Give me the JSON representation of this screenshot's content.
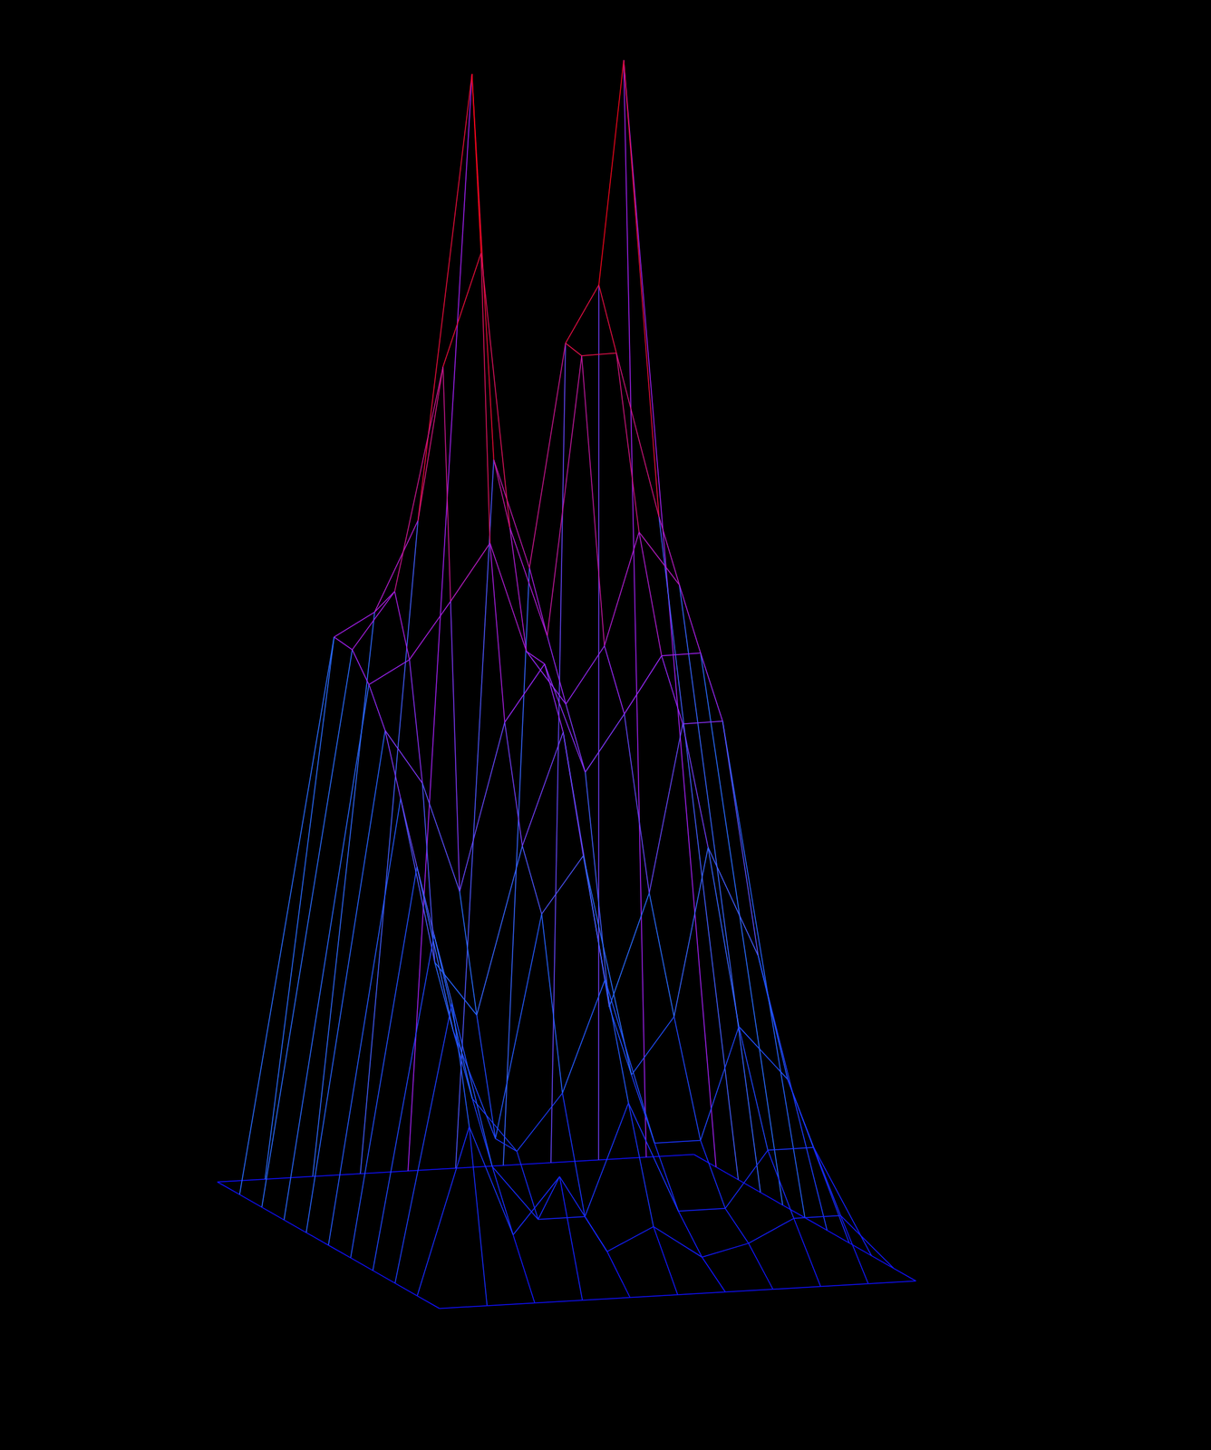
{
  "chart_data": {
    "type": "surface",
    "tick_labels": false,
    "zlim": [
      0,
      10
    ],
    "colors": [
      "#1010ff",
      "#2a6cff",
      "#a020f0",
      "#e0104a",
      "#ff0000"
    ],
    "z": [
      [
        0,
        0,
        0,
        0,
        0,
        0,
        0,
        0,
        0,
        0,
        0
      ],
      [
        0,
        5.0,
        5.2,
        6.0,
        10.0,
        6.5,
        5.5,
        7.5,
        8.0,
        10.0,
        0
      ],
      [
        0,
        5.0,
        5.5,
        7.5,
        8.5,
        6.0,
        5.0,
        7.5,
        7.5,
        6.0,
        0
      ],
      [
        0,
        4.8,
        5.0,
        5.5,
        6.0,
        5.0,
        4.5,
        5.0,
        6.0,
        5.5,
        0
      ],
      [
        0,
        4.5,
        4.0,
        3.0,
        4.5,
        5.0,
        4.0,
        4.5,
        5.0,
        5.0,
        0
      ],
      [
        0,
        4.0,
        2.5,
        2.0,
        3.5,
        4.5,
        2.0,
        3.0,
        4.5,
        4.5,
        0
      ],
      [
        0,
        3.5,
        2.0,
        1.0,
        3.0,
        3.5,
        1.5,
        2.0,
        3.5,
        2.5,
        0
      ],
      [
        0,
        3.0,
        1.5,
        1.0,
        1.5,
        2.5,
        1.0,
        1.0,
        2.0,
        1.5,
        0
      ],
      [
        0,
        2.5,
        1.0,
        0.5,
        0.5,
        1.5,
        0.5,
        0.5,
        1.0,
        1.0,
        0
      ],
      [
        0,
        1.5,
        0.5,
        1.0,
        0.3,
        0.5,
        0.2,
        0.3,
        0.5,
        0.5,
        0
      ],
      [
        0,
        0,
        0,
        0,
        0,
        0,
        0,
        0,
        0,
        0,
        0
      ]
    ]
  }
}
